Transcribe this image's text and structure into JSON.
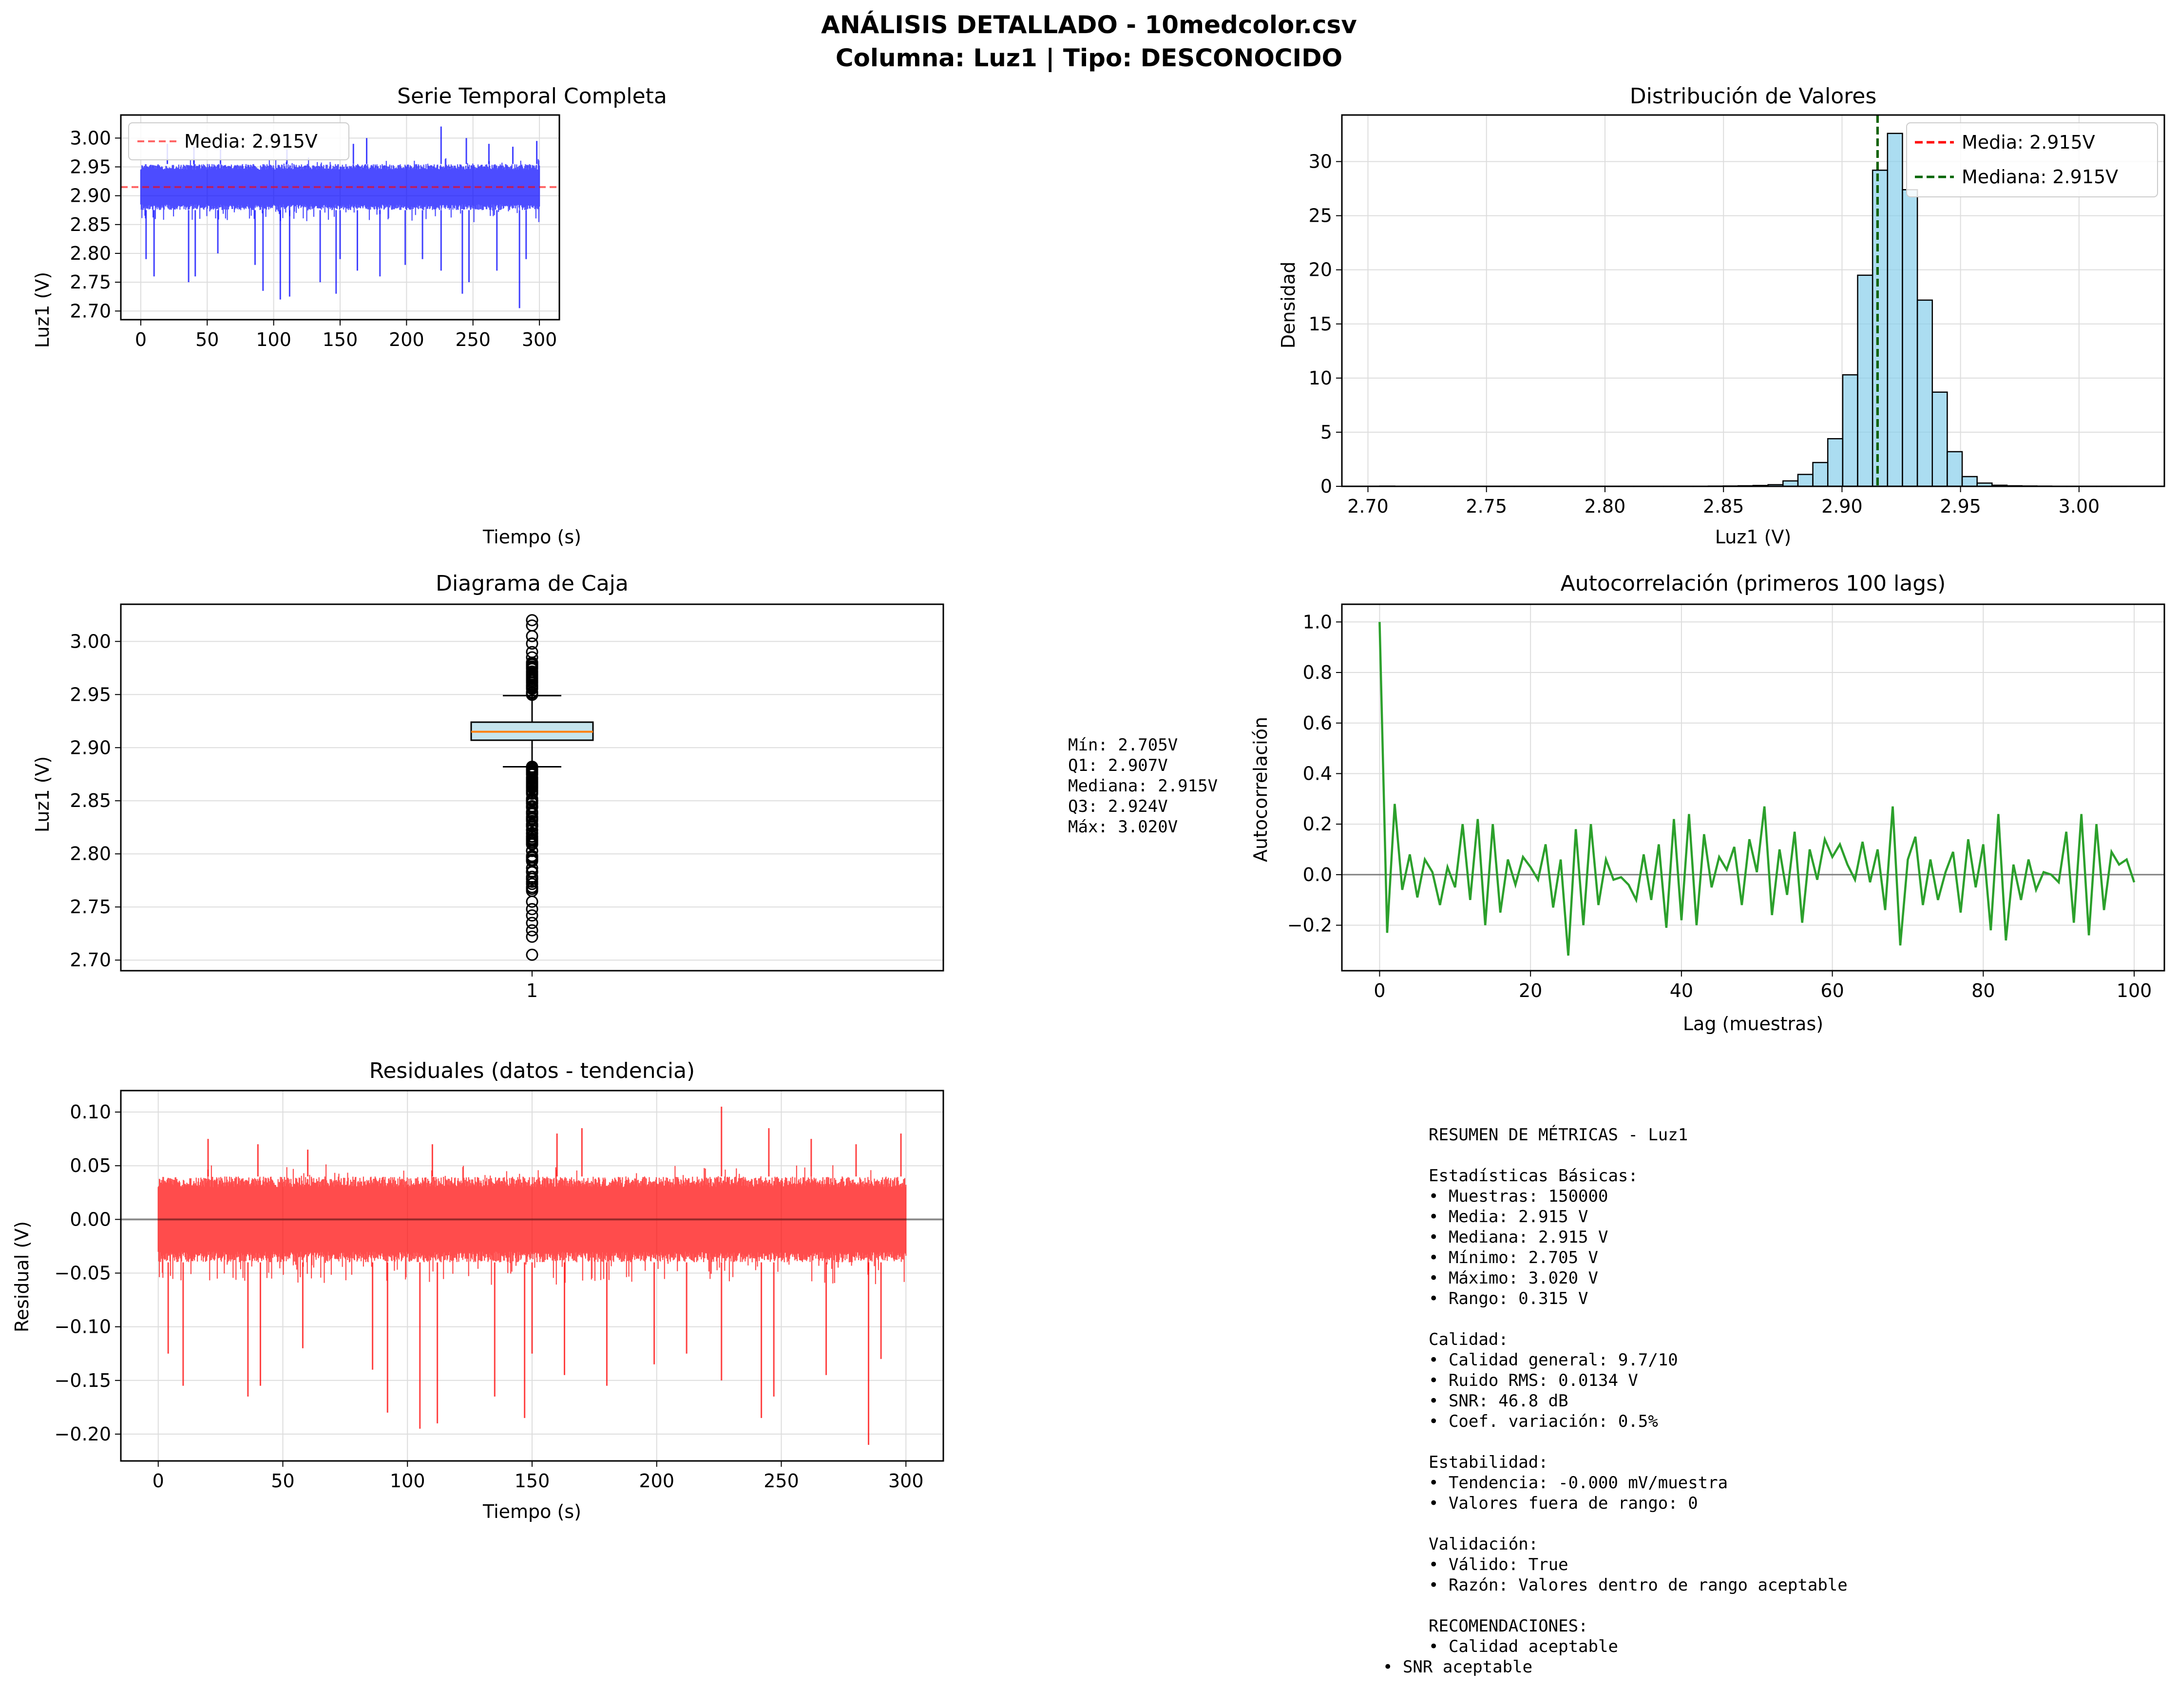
{
  "figure": {
    "title_line1": "ANÁLISIS DETALLADO - 10medcolor.csv",
    "title_line2": "Columna: Luz1 | Tipo: DESCONOCIDO"
  },
  "colors": {
    "series_blue": "#0000ff",
    "mean_red": "#ff0000",
    "median_green": "#006400",
    "hist_fill": "#87ceeb",
    "acf_green": "#2ca02c",
    "residual_red": "#ff0000",
    "box_fill": "#add8e6",
    "box_median": "#ff7f0e",
    "grid": "#dddddd"
  },
  "chart_data": [
    {
      "id": "time-series",
      "type": "line",
      "title": "Serie Temporal Completa",
      "xlabel": "Tiempo (s)",
      "ylabel": "Luz1 (V)",
      "xlim": [
        -15,
        315
      ],
      "ylim": [
        2.685,
        3.04
      ],
      "xticks": [
        0,
        50,
        100,
        150,
        200,
        250,
        300
      ],
      "yticks": [
        2.7,
        2.75,
        2.8,
        2.85,
        2.9,
        2.95,
        3.0
      ],
      "ytick_labels": [
        "2.70",
        "2.75",
        "2.80",
        "2.85",
        "2.90",
        "2.95",
        "3.00"
      ],
      "grid": true,
      "legend": "top-left",
      "series": [
        {
          "name": "",
          "color": "#0000ff",
          "x_range": [
            0,
            300
          ],
          "mean": 2.915,
          "band_low": 2.875,
          "band_high": 2.955,
          "spikes_down": [
            [
              4,
              2.79
            ],
            [
              10,
              2.76
            ],
            [
              36,
              2.75
            ],
            [
              41,
              2.76
            ],
            [
              58,
              2.8
            ],
            [
              86,
              2.78
            ],
            [
              92,
              2.735
            ],
            [
              105,
              2.72
            ],
            [
              112,
              2.725
            ],
            [
              135,
              2.75
            ],
            [
              147,
              2.73
            ],
            [
              150,
              2.79
            ],
            [
              163,
              2.77
            ],
            [
              180,
              2.76
            ],
            [
              199,
              2.78
            ],
            [
              212,
              2.79
            ],
            [
              226,
              2.77
            ],
            [
              242,
              2.73
            ],
            [
              247,
              2.75
            ],
            [
              268,
              2.77
            ],
            [
              285,
              2.705
            ],
            [
              290,
              2.79
            ]
          ],
          "spikes_up": [
            [
              20,
              2.99
            ],
            [
              40,
              2.985
            ],
            [
              60,
              2.98
            ],
            [
              110,
              2.98
            ],
            [
              160,
              2.99
            ],
            [
              170,
              3.0
            ],
            [
              226,
              3.02
            ],
            [
              245,
              3.0
            ],
            [
              262,
              2.99
            ],
            [
              280,
              2.985
            ],
            [
              298,
              2.995
            ]
          ]
        }
      ],
      "reference_lines": [
        {
          "name": "Media: 2.915V",
          "value": 2.915,
          "color": "#ff0000",
          "style": "dashed"
        }
      ]
    },
    {
      "id": "histogram",
      "type": "bar",
      "title": "Distribución de Valores",
      "xlabel": "Luz1 (V)",
      "ylabel": "Densidad",
      "xlim": [
        2.689,
        3.036
      ],
      "ylim": [
        0,
        34.3
      ],
      "xticks": [
        2.7,
        2.75,
        2.8,
        2.85,
        2.9,
        2.95,
        3.0
      ],
      "xtick_labels": [
        "2.70",
        "2.75",
        "2.80",
        "2.85",
        "2.90",
        "2.95",
        "3.00"
      ],
      "yticks": [
        0,
        5,
        10,
        15,
        20,
        25,
        30
      ],
      "grid": true,
      "legend": "top-right",
      "bin_start": 2.705,
      "bin_width": 0.0063,
      "values": [
        0.02,
        0.01,
        0.01,
        0.01,
        0.01,
        0.01,
        0.01,
        0.01,
        0.01,
        0.01,
        0.01,
        0.01,
        0.01,
        0.01,
        0.01,
        0.01,
        0.01,
        0.01,
        0.01,
        0.01,
        0.01,
        0.01,
        0.02,
        0.03,
        0.05,
        0.08,
        0.15,
        0.5,
        1.1,
        2.2,
        4.4,
        10.3,
        19.5,
        29.2,
        32.6,
        27.4,
        17.2,
        8.7,
        3.2,
        0.9,
        0.3,
        0.1,
        0.05,
        0.03,
        0.02,
        0.01,
        0.01,
        0.01,
        0.01,
        0.01
      ],
      "reference_lines": [
        {
          "name": "Media: 2.915V",
          "value": 2.915,
          "color": "#ff0000",
          "style": "dashed"
        },
        {
          "name": "Mediana: 2.915V",
          "value": 2.915,
          "color": "#006400",
          "style": "dashed"
        }
      ]
    },
    {
      "id": "boxplot",
      "type": "box",
      "title": "Diagrama de Caja",
      "xlabel": "",
      "ylabel": "Luz1 (V)",
      "ylim": [
        2.69,
        3.035
      ],
      "yticks": [
        2.7,
        2.75,
        2.8,
        2.85,
        2.9,
        2.95,
        3.0
      ],
      "ytick_labels": [
        "2.70",
        "2.75",
        "2.80",
        "2.85",
        "2.90",
        "2.95",
        "3.00"
      ],
      "xtick_labels": [
        "1"
      ],
      "grid": true,
      "q1": 2.907,
      "median": 2.915,
      "q3": 2.924,
      "whisker_low": 2.882,
      "whisker_high": 2.949,
      "outlier_range_low": [
        2.705,
        2.882
      ],
      "outlier_range_high": [
        2.949,
        3.02
      ],
      "outliers_low_sparse": [
        2.705,
        2.722,
        2.728,
        2.735,
        2.742,
        2.748,
        2.755
      ],
      "outliers_high_sparse": [
        2.985,
        2.99,
        2.998,
        3.005,
        3.015,
        3.02
      ]
    },
    {
      "id": "autocorrelation",
      "type": "line",
      "title": "Autocorrelación (primeros 100 lags)",
      "xlabel": "Lag (muestras)",
      "ylabel": "Autocorrelación",
      "xlim": [
        -5,
        104
      ],
      "ylim": [
        -0.38,
        1.07
      ],
      "xticks": [
        0,
        20,
        40,
        60,
        80,
        100
      ],
      "yticks": [
        -0.2,
        0.0,
        0.2,
        0.4,
        0.6,
        0.8,
        1.0
      ],
      "ytick_labels": [
        "−0.2",
        "0.0",
        "0.2",
        "0.4",
        "0.6",
        "0.8",
        "1.0"
      ],
      "grid": true,
      "series": [
        {
          "name": "",
          "color": "#2ca02c",
          "values": [
            1.0,
            -0.23,
            0.28,
            -0.06,
            0.08,
            -0.09,
            0.06,
            0.01,
            -0.12,
            0.03,
            -0.05,
            0.2,
            -0.1,
            0.22,
            -0.2,
            0.2,
            -0.15,
            0.06,
            -0.04,
            0.07,
            0.03,
            -0.02,
            0.12,
            -0.13,
            0.06,
            -0.32,
            0.18,
            -0.2,
            0.2,
            -0.12,
            0.06,
            -0.02,
            -0.01,
            -0.04,
            -0.1,
            0.08,
            -0.1,
            0.12,
            -0.21,
            0.22,
            -0.18,
            0.24,
            -0.2,
            0.16,
            -0.05,
            0.07,
            0.02,
            0.11,
            -0.12,
            0.14,
            0.01,
            0.27,
            -0.16,
            0.1,
            -0.08,
            0.17,
            -0.19,
            0.1,
            -0.02,
            0.14,
            0.07,
            0.12,
            0.04,
            -0.02,
            0.13,
            -0.03,
            0.1,
            -0.14,
            0.27,
            -0.28,
            0.06,
            0.15,
            -0.12,
            0.06,
            -0.1,
            0.01,
            0.09,
            -0.15,
            0.14,
            -0.05,
            0.12,
            -0.22,
            0.24,
            -0.26,
            0.04,
            -0.1,
            0.06,
            -0.06,
            0.01,
            0.0,
            -0.03,
            0.17,
            -0.19,
            0.24,
            -0.24,
            0.2,
            -0.14,
            0.09,
            0.04,
            0.06,
            -0.03
          ],
          "note_first_value": 1.0
        }
      ],
      "reference_lines": [
        {
          "value": 0.0,
          "color": "#808080",
          "style": "solid"
        }
      ]
    },
    {
      "id": "residuals",
      "type": "line",
      "title": "Residuales (datos - tendencia)",
      "xlabel": "Tiempo (s)",
      "ylabel": "Residual (V)",
      "xlim": [
        -15,
        315
      ],
      "ylim": [
        -0.225,
        0.12
      ],
      "xticks": [
        0,
        50,
        100,
        150,
        200,
        250,
        300
      ],
      "yticks": [
        -0.2,
        -0.15,
        -0.1,
        -0.05,
        0.0,
        0.05,
        0.1
      ],
      "ytick_labels": [
        "−0.20",
        "−0.15",
        "−0.10",
        "−0.05",
        "0.00",
        "0.05",
        "0.10"
      ],
      "grid": true,
      "series": [
        {
          "name": "",
          "color": "#ff0000",
          "x_range": [
            0,
            300
          ],
          "mean": 0.0,
          "band_low": -0.04,
          "band_high": 0.04,
          "spikes_down": [
            [
              4,
              -0.125
            ],
            [
              10,
              -0.155
            ],
            [
              36,
              -0.165
            ],
            [
              41,
              -0.155
            ],
            [
              58,
              -0.12
            ],
            [
              86,
              -0.14
            ],
            [
              92,
              -0.18
            ],
            [
              105,
              -0.195
            ],
            [
              112,
              -0.19
            ],
            [
              135,
              -0.165
            ],
            [
              147,
              -0.185
            ],
            [
              150,
              -0.125
            ],
            [
              163,
              -0.145
            ],
            [
              180,
              -0.155
            ],
            [
              199,
              -0.135
            ],
            [
              212,
              -0.125
            ],
            [
              226,
              -0.15
            ],
            [
              242,
              -0.185
            ],
            [
              247,
              -0.165
            ],
            [
              268,
              -0.145
            ],
            [
              285,
              -0.21
            ],
            [
              290,
              -0.13
            ]
          ],
          "spikes_up": [
            [
              20,
              0.075
            ],
            [
              40,
              0.07
            ],
            [
              60,
              0.065
            ],
            [
              110,
              0.07
            ],
            [
              160,
              0.08
            ],
            [
              170,
              0.085
            ],
            [
              226,
              0.105
            ],
            [
              245,
              0.085
            ],
            [
              262,
              0.075
            ],
            [
              280,
              0.07
            ],
            [
              298,
              0.08
            ]
          ]
        }
      ],
      "reference_lines": [
        {
          "value": 0.0,
          "color": "#000000",
          "style": "solid"
        }
      ]
    }
  ],
  "box_stats_text": {
    "line1": "Mín: 2.705V",
    "line2": "Q1: 2.907V",
    "line3": "Mediana: 2.915V",
    "line4": "Q3: 2.924V",
    "line5": "Máx: 3.020V"
  },
  "summary": {
    "title": "RESUMEN DE MÉTRICAS - Luz1",
    "basic_header": "Estadísticas Básicas:",
    "basic_1": "• Muestras: 150000",
    "basic_2": "• Media: 2.915 V",
    "basic_3": "• Mediana: 2.915 V",
    "basic_4": "• Mínimo: 2.705 V",
    "basic_5": "• Máximo: 3.020 V",
    "basic_6": "• Rango: 0.315 V",
    "quality_header": "Calidad:",
    "quality_1": "• Calidad general: 9.7/10",
    "quality_2": "• Ruido RMS: 0.0134 V",
    "quality_3": "• SNR: 46.8 dB",
    "quality_4": "• Coef. variación: 0.5%",
    "stability_header": "Estabilidad:",
    "stability_1": "• Tendencia: -0.000 mV/muestra",
    "stability_2": "• Valores fuera de rango: 0",
    "validation_header": "Validación:",
    "validation_1": "• Válido: True",
    "validation_2": "• Razón: Valores dentro de rango aceptable",
    "recommendations_header": "RECOMENDACIONES:",
    "recommendations_1": "• Calidad aceptable",
    "recommendations_2": "• SNR aceptable"
  }
}
